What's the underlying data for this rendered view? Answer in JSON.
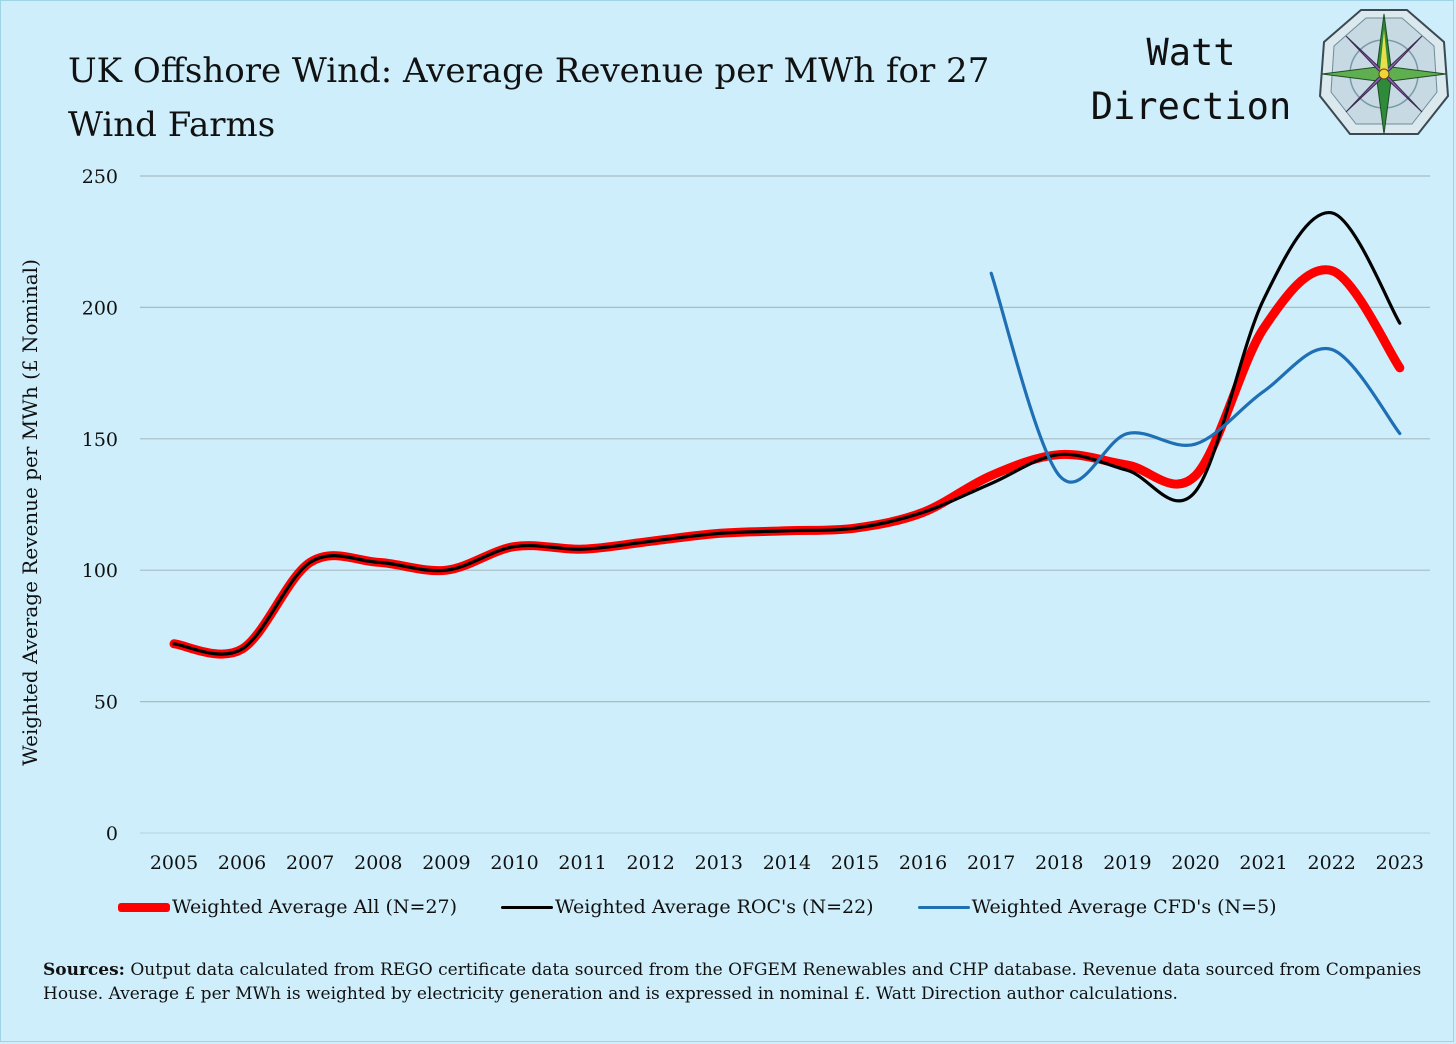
{
  "header": {
    "title": "UK Offshore Wind: Average Revenue per MWh for 27 Wind Farms",
    "brand_line1": "Watt",
    "brand_line2": "Direction"
  },
  "colors": {
    "background": "#cdeefa",
    "grid": "#a8bcc4",
    "series_all": "#ff0000",
    "series_roc": "#000000",
    "series_cfd": "#1f6fb5"
  },
  "chart_data": {
    "type": "line",
    "title": "UK Offshore Wind: Average Revenue per MWh for 27 Wind Farms",
    "xlabel": "",
    "ylabel": "Weighted Average Revenue per MWh (£ Nominal)",
    "ylim": [
      0,
      250
    ],
    "yticks": [
      0,
      50,
      100,
      150,
      200,
      250
    ],
    "grid": true,
    "legend_position": "bottom",
    "x": [
      "2005",
      "2006",
      "2007",
      "2008",
      "2009",
      "2010",
      "2011",
      "2012",
      "2013",
      "2014",
      "2015",
      "2016",
      "2017",
      "2018",
      "2019",
      "2020",
      "2021",
      "2022",
      "2023"
    ],
    "series": [
      {
        "name": "Weighted Average All (N=27)",
        "color": "#ff0000",
        "values": [
          72,
          70,
          103,
          103,
          100,
          109,
          108,
          111,
          114,
          115,
          116,
          122,
          136,
          144,
          140,
          136,
          192,
          214,
          177
        ]
      },
      {
        "name": "Weighted Average ROC's (N=22)",
        "color": "#000000",
        "values": [
          72,
          70,
          103,
          103,
          100,
          109,
          108,
          111,
          114,
          115,
          116,
          122,
          133,
          144,
          138,
          130,
          203,
          236,
          194
        ]
      },
      {
        "name": "Weighted Average CFD's (N=5)",
        "color": "#1f6fb5",
        "values": [
          null,
          null,
          null,
          null,
          null,
          null,
          null,
          null,
          null,
          null,
          null,
          null,
          213,
          136,
          152,
          148,
          168,
          184,
          152
        ]
      }
    ]
  },
  "sources": {
    "label": "Sources:",
    "text": "Output data calculated from REGO certificate data sourced from the OFGEM Renewables and CHP database. Revenue data sourced from Companies House. Average £ per MWh  is weighted by electricity generation and is expressed in nominal £. Watt Direction author calculations."
  }
}
